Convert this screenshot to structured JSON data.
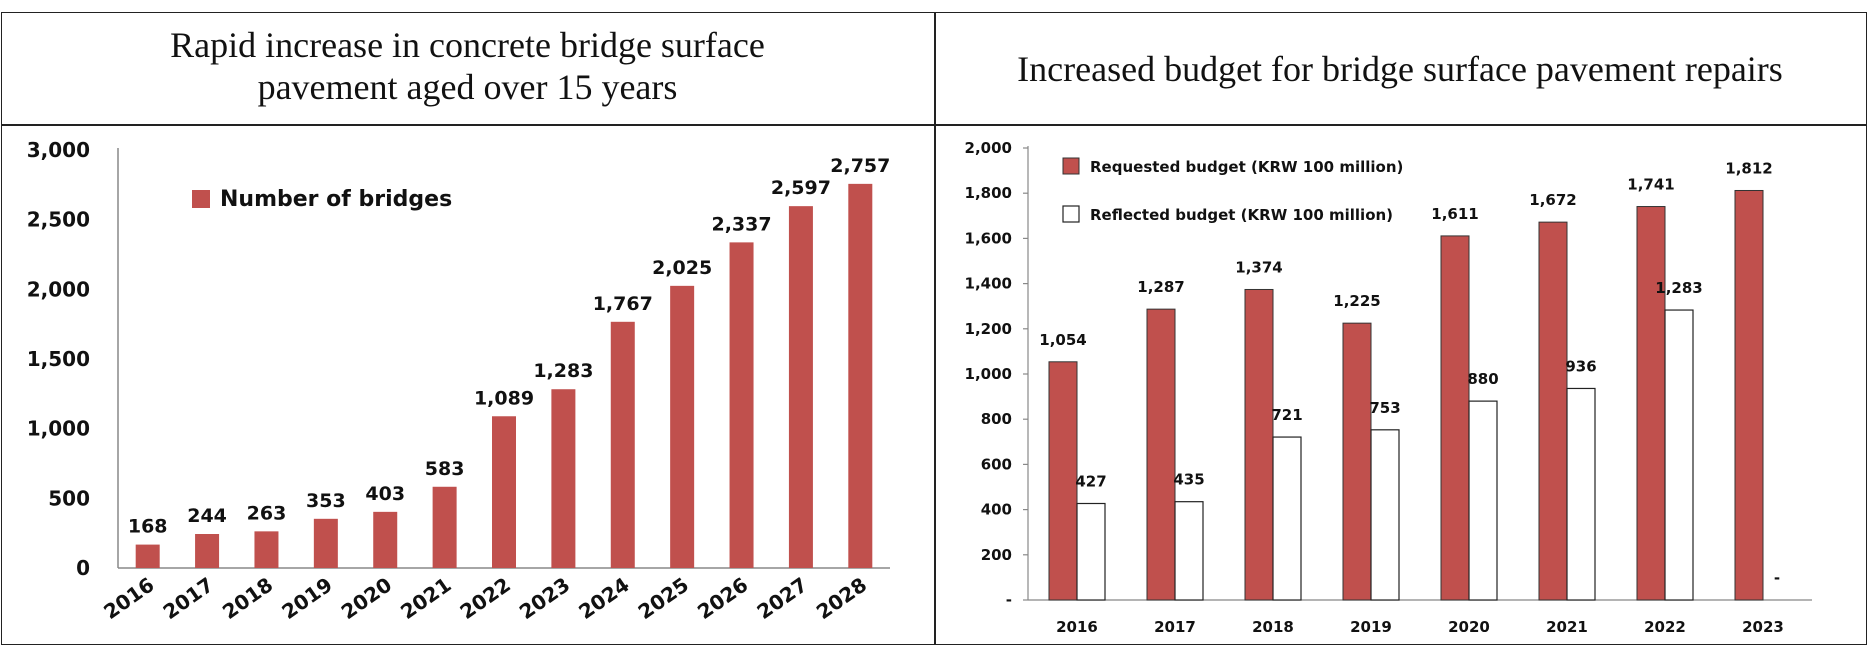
{
  "titles": {
    "left_line1": "Rapid increase in concrete bridge surface",
    "left_line2": "pavement aged over 15 years",
    "right": "Increased budget for bridge surface pavement repairs"
  },
  "colors": {
    "bar_red": "#C0504D",
    "bar_white": "#FFFFFF",
    "axis": "#888888",
    "text": "#111111"
  },
  "chart_data": [
    {
      "type": "bar",
      "title": "Rapid increase in concrete bridge surface pavement aged over 15 years",
      "categories": [
        "2016",
        "2017",
        "2018",
        "2019",
        "2020",
        "2021",
        "2022",
        "2023",
        "2024",
        "2025",
        "2026",
        "2027",
        "2028"
      ],
      "series": [
        {
          "name": "Number of bridges",
          "values": [
            168,
            244,
            263,
            353,
            403,
            583,
            1089,
            1283,
            1767,
            2025,
            2337,
            2597,
            2757
          ]
        }
      ],
      "value_labels": [
        "168",
        "244",
        "263",
        "353",
        "403",
        "583",
        "1,089",
        "1,283",
        "1,767",
        "2,025",
        "2,337",
        "2,597",
        "2,757"
      ],
      "ylim": [
        0,
        3000
      ],
      "yticks": [
        "0",
        "500",
        "1,000",
        "1,500",
        "2,000",
        "2,500",
        "3,000"
      ],
      "legend": "top-left",
      "xlabel": "",
      "ylabel": ""
    },
    {
      "type": "bar",
      "title": "Increased budget for bridge surface pavement repairs",
      "categories": [
        "2016",
        "2017",
        "2018",
        "2019",
        "2020",
        "2021",
        "2022",
        "2023"
      ],
      "series": [
        {
          "name": "Requested budget (KRW 100 million)",
          "values": [
            1054,
            1287,
            1374,
            1225,
            1611,
            1672,
            1741,
            1812
          ],
          "value_labels": [
            "1,054",
            "1,287",
            "1,374",
            "1,225",
            "1,611",
            "1,672",
            "1,741",
            "1,812"
          ]
        },
        {
          "name": "Reflected budget (KRW 100 million)",
          "values": [
            427,
            435,
            721,
            753,
            880,
            936,
            1283,
            0
          ],
          "value_labels": [
            "427",
            "435",
            "721",
            "753",
            "880",
            "936",
            "1,283",
            "-"
          ]
        }
      ],
      "ylim": [
        0,
        2000
      ],
      "yticks": [
        "-",
        "200",
        "400",
        "600",
        "800",
        "1,000",
        "1,200",
        "1,400",
        "1,600",
        "1,800",
        "2,000"
      ],
      "legend": "top-left",
      "xlabel": "",
      "ylabel": ""
    }
  ]
}
